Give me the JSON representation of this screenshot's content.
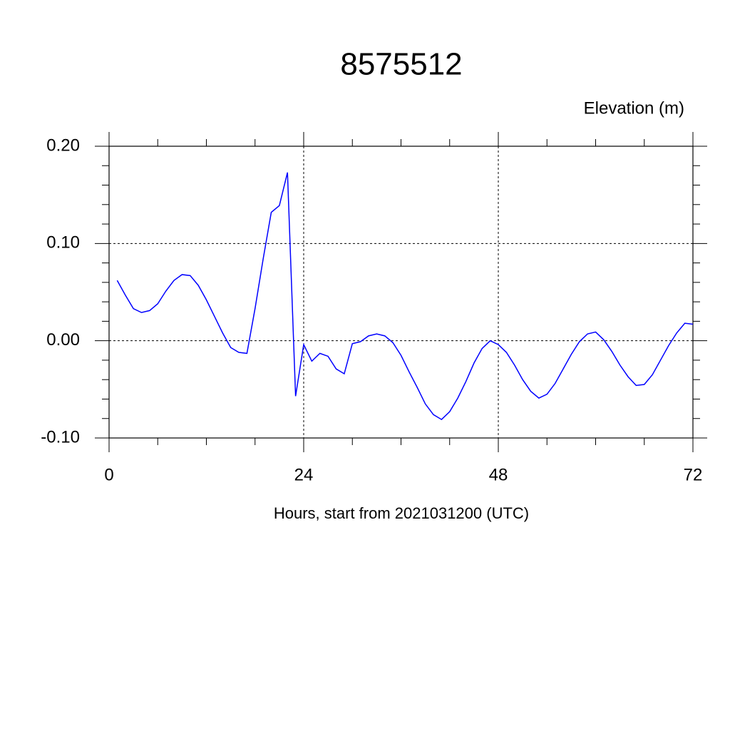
{
  "chart_data": {
    "type": "line",
    "title": "8575512",
    "ylabel_right": "Elevation (m)",
    "xlabel": "Hours, start from 2021031200 (UTC)",
    "x": [
      1,
      2,
      3,
      4,
      5,
      6,
      7,
      8,
      9,
      10,
      11,
      12,
      13,
      14,
      15,
      16,
      17,
      18,
      19,
      20,
      21,
      22,
      23,
      24,
      25,
      26,
      27,
      28,
      29,
      30,
      31,
      32,
      33,
      34,
      35,
      36,
      37,
      38,
      39,
      40,
      41,
      42,
      43,
      44,
      45,
      46,
      47,
      48,
      49,
      50,
      51,
      52,
      53,
      54,
      55,
      56,
      57,
      58,
      59,
      60,
      61,
      62,
      63,
      64,
      65,
      66,
      67,
      68,
      69,
      70,
      71,
      72
    ],
    "series": [
      {
        "color": "#0000ff",
        "values": [
          0.062,
          0.047,
          0.033,
          0.029,
          0.031,
          0.038,
          0.051,
          0.062,
          0.068,
          0.067,
          0.057,
          0.042,
          0.025,
          0.008,
          -0.007,
          -0.012,
          -0.013,
          0.033,
          0.084,
          0.132,
          0.139,
          0.173,
          -0.057,
          -0.004,
          -0.021,
          -0.013,
          -0.016,
          -0.029,
          -0.034,
          -0.003,
          -0.001,
          0.005,
          0.007,
          0.005,
          -0.002,
          -0.015,
          -0.032,
          -0.048,
          -0.065,
          -0.076,
          -0.081,
          -0.073,
          -0.059,
          -0.042,
          -0.023,
          -0.008,
          0.0,
          -0.004,
          -0.012,
          -0.025,
          -0.04,
          -0.052,
          -0.059,
          -0.055,
          -0.044,
          -0.029,
          -0.014,
          -0.001,
          0.007,
          0.009,
          0.001,
          -0.011,
          -0.025,
          -0.037,
          -0.046,
          -0.045,
          -0.035,
          -0.02,
          -0.005,
          0.008,
          0.018,
          0.017
        ]
      }
    ],
    "xlim": [
      0,
      72
    ],
    "xticks": [
      0,
      24,
      48,
      72
    ],
    "xminorticks": [
      6,
      12,
      18,
      30,
      36,
      42,
      54,
      60,
      66
    ],
    "ylim": [
      -0.1,
      0.2
    ],
    "yticks": [
      {
        "value": -0.1,
        "label": "-0.10"
      },
      {
        "value": 0.0,
        "label": "0.00"
      },
      {
        "value": 0.1,
        "label": "0.10"
      },
      {
        "value": 0.2,
        "label": "0.20"
      }
    ],
    "yminorticks": [
      -0.08,
      -0.06,
      -0.04,
      -0.02,
      0.02,
      0.04,
      0.06,
      0.08,
      0.12,
      0.14,
      0.16,
      0.18
    ],
    "grid": true
  }
}
